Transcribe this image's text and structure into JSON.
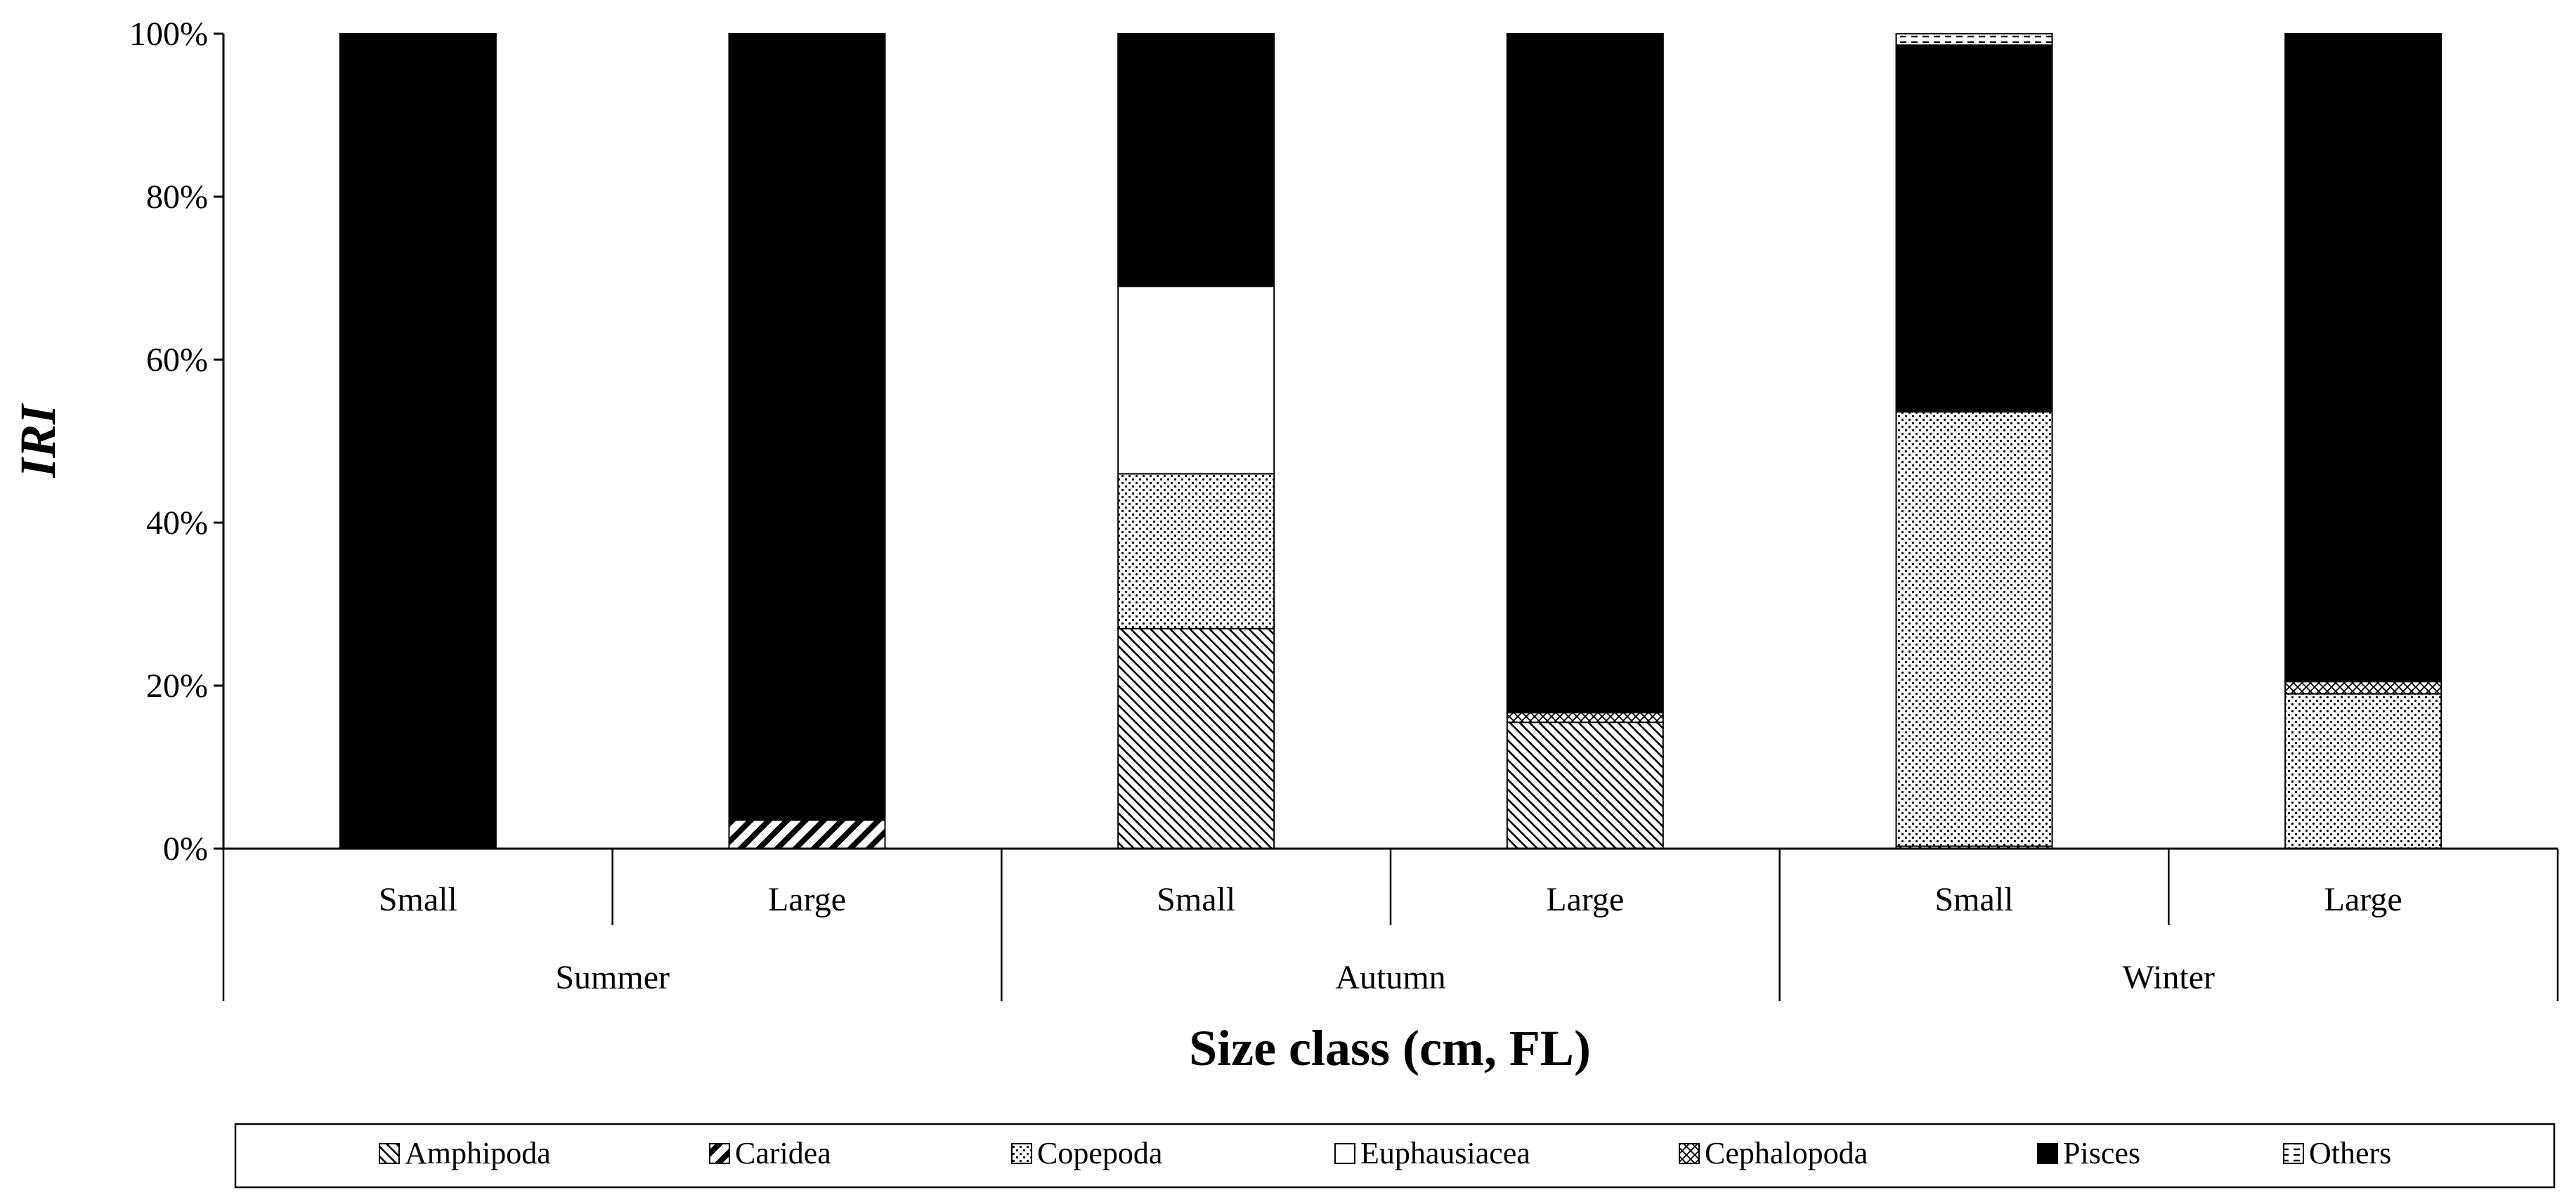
{
  "chart_data": {
    "type": "bar",
    "stacked": true,
    "percent": true,
    "ylabel": "IRI",
    "xlabel": "Size class (cm, FL)",
    "ylim": [
      0,
      100
    ],
    "yticks": [
      "0%",
      "20%",
      "40%",
      "60%",
      "80%",
      "100%"
    ],
    "groups": [
      {
        "label": "Summer",
        "categories": [
          "Small",
          "Large"
        ]
      },
      {
        "label": "Autumn",
        "categories": [
          "Small",
          "Large"
        ]
      },
      {
        "label": "Winter",
        "categories": [
          "Small",
          "Large"
        ]
      }
    ],
    "categories": [
      "Small",
      "Large",
      "Small",
      "Large",
      "Small",
      "Large"
    ],
    "series": [
      {
        "name": "Amphipoda",
        "values": [
          0,
          0,
          27,
          15.5,
          0.3,
          0
        ]
      },
      {
        "name": "Caridea",
        "values": [
          0,
          3.5,
          0,
          0,
          0,
          0
        ]
      },
      {
        "name": "Copepoda",
        "values": [
          0,
          0,
          19,
          0,
          53.3,
          19
        ]
      },
      {
        "name": "Euphausiacea",
        "values": [
          0,
          0,
          23,
          0,
          0,
          0
        ]
      },
      {
        "name": "Cephalopoda",
        "values": [
          0,
          0,
          0,
          1.2,
          0,
          1.5
        ]
      },
      {
        "name": "Pisces",
        "values": [
          100,
          96.5,
          31,
          83.3,
          45,
          79.5
        ]
      },
      {
        "name": "Others",
        "values": [
          0,
          0,
          0,
          0,
          1.4,
          0
        ]
      }
    ],
    "legend_position": "bottom",
    "grid": false
  },
  "patterns": {
    "Amphipoda": "diag-fine",
    "Caridea": "diag-bold",
    "Copepoda": "dots",
    "Euphausiacea": "solid-white",
    "Cephalopoda": "cross-hatch",
    "Pisces": "solid-black",
    "Others": "dashed"
  }
}
